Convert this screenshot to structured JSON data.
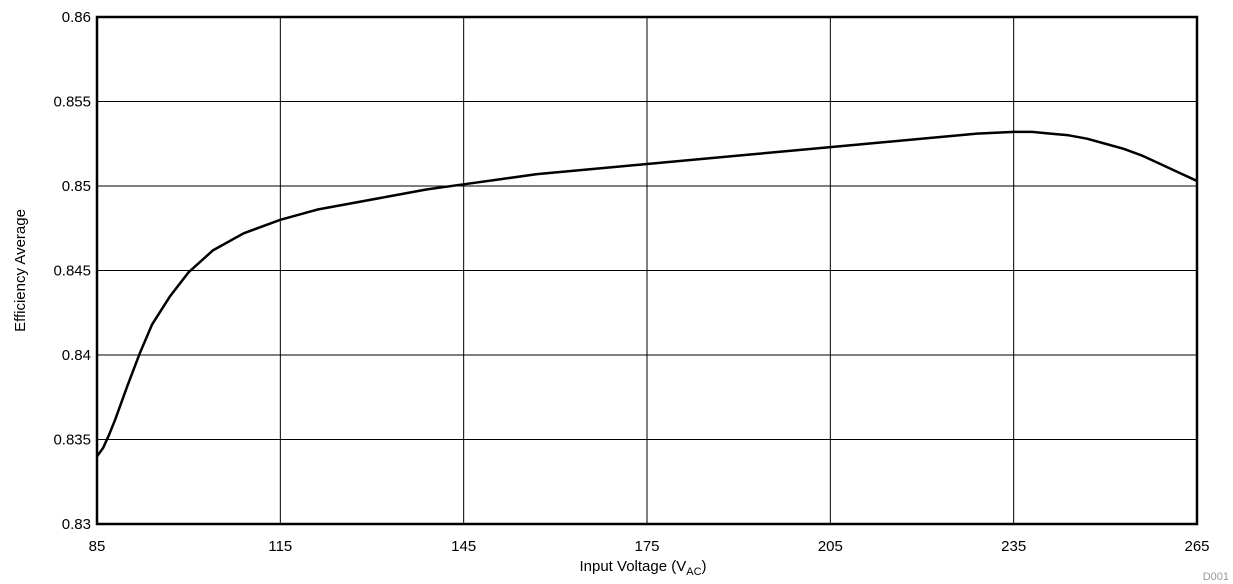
{
  "chart_data": {
    "type": "line",
    "title": "",
    "xlabel": "Input Voltage (V",
    "xlabel_sub": "AC",
    "xlabel_suffix": ")",
    "ylabel": "Efficiency Average",
    "xlim": [
      85,
      265
    ],
    "ylim": [
      0.83,
      0.86
    ],
    "xticks": [
      85,
      115,
      145,
      175,
      205,
      235,
      265
    ],
    "xtick_labels": [
      "85",
      "115",
      "145",
      "175",
      "205",
      "235",
      "265"
    ],
    "yticks": [
      0.83,
      0.835,
      0.84,
      0.845,
      0.85,
      0.855,
      0.86
    ],
    "ytick_labels": [
      "0.83",
      "0.835",
      "0.84",
      "0.845",
      "0.85",
      "0.855",
      "0.86"
    ],
    "grid": true,
    "legend": "none",
    "line_color": "#000000",
    "series": [
      {
        "x": [
          85,
          86,
          87,
          88,
          89,
          90,
          92,
          94,
          97,
          100,
          104,
          109,
          115,
          121,
          127,
          133,
          139,
          145,
          151,
          157,
          163,
          169,
          175,
          181,
          187,
          193,
          199,
          205,
          211,
          217,
          223,
          229,
          235,
          238,
          241,
          244,
          247,
          250,
          253,
          256,
          259,
          262,
          265
        ],
        "y": [
          0.834,
          0.8345,
          0.8353,
          0.8362,
          0.8372,
          0.8382,
          0.8401,
          0.8418,
          0.8435,
          0.8449,
          0.8462,
          0.8472,
          0.848,
          0.8486,
          0.849,
          0.8494,
          0.8498,
          0.8501,
          0.8504,
          0.8507,
          0.8509,
          0.8511,
          0.8513,
          0.8515,
          0.8517,
          0.8519,
          0.8521,
          0.8523,
          0.8525,
          0.8527,
          0.8529,
          0.8531,
          0.8532,
          0.8532,
          0.8531,
          0.853,
          0.8528,
          0.8525,
          0.8522,
          0.8518,
          0.8513,
          0.8508,
          0.8503
        ]
      }
    ]
  },
  "figure_id": "D001"
}
